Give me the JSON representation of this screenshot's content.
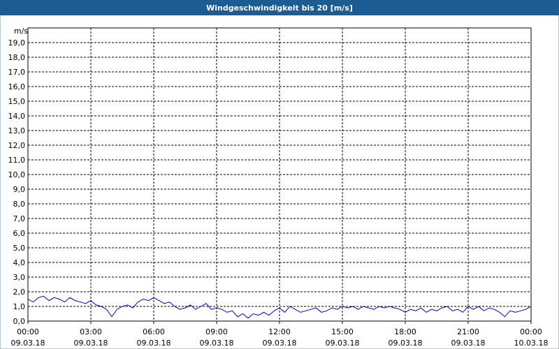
{
  "chart_data": {
    "type": "line",
    "title": "Windgeschwindigkeit bis 20 [m/s]",
    "y_label": "m/s",
    "x": [
      0,
      0.25,
      0.5,
      0.75,
      1,
      1.25,
      1.5,
      1.75,
      2,
      2.25,
      2.5,
      2.75,
      3,
      3.25,
      3.5,
      3.75,
      4,
      4.25,
      4.5,
      4.75,
      5,
      5.25,
      5.5,
      5.75,
      6,
      6.25,
      6.5,
      6.75,
      7,
      7.25,
      7.5,
      7.75,
      8,
      8.25,
      8.5,
      8.75,
      9,
      9.25,
      9.5,
      9.75,
      10,
      10.25,
      10.5,
      10.75,
      11,
      11.25,
      11.5,
      11.75,
      12,
      12.25,
      12.5,
      12.75,
      13,
      13.25,
      13.5,
      13.75,
      14,
      14.25,
      14.5,
      14.75,
      15,
      15.25,
      15.5,
      15.75,
      16,
      16.25,
      16.5,
      16.75,
      17,
      17.25,
      17.5,
      17.75,
      18,
      18.25,
      18.5,
      18.75,
      19,
      19.25,
      19.5,
      19.75,
      20,
      20.25,
      20.5,
      20.75,
      21,
      21.25,
      21.5,
      21.75,
      22,
      22.25,
      22.5,
      22.75,
      23,
      23.25,
      23.5,
      23.75,
      24
    ],
    "series": [
      {
        "color": "#0000cc",
        "values": [
          1.5,
          1.3,
          1.6,
          1.7,
          1.4,
          1.6,
          1.5,
          1.3,
          1.6,
          1.4,
          1.3,
          1.2,
          1.4,
          1.1,
          1.0,
          0.8,
          0.3,
          0.8,
          1.0,
          1.1,
          0.9,
          1.3,
          1.5,
          1.4,
          1.6,
          1.4,
          1.2,
          1.3,
          1.0,
          0.8,
          0.9,
          1.1,
          0.8,
          1.0,
          1.2,
          0.8,
          0.9,
          0.8,
          0.6,
          0.7,
          0.3,
          0.5,
          0.2,
          0.5,
          0.4,
          0.6,
          0.4,
          0.7,
          0.9,
          0.6,
          1.0,
          0.8,
          0.6,
          0.7,
          0.8,
          0.9,
          0.6,
          0.7,
          0.9,
          0.8,
          1.0,
          0.9,
          1.0,
          0.8,
          1.0,
          0.9,
          0.8,
          1.0,
          0.9,
          1.0,
          0.9,
          0.8,
          0.6,
          0.8,
          0.7,
          0.9,
          0.6,
          0.8,
          0.7,
          0.9,
          1.0,
          0.7,
          0.8,
          0.6,
          1.0,
          0.8,
          1.0,
          0.7,
          0.9,
          0.8,
          0.6,
          0.3,
          0.7,
          0.6,
          0.7,
          0.8,
          1.0
        ]
      }
    ],
    "xlim": [
      0,
      24
    ],
    "xticks": [
      {
        "value": 0,
        "label": "00:00\n09.03.18"
      },
      {
        "value": 3,
        "label": "03:00\n09.03.18"
      },
      {
        "value": 6,
        "label": "06:00\n09.03.18"
      },
      {
        "value": 9,
        "label": "09:00\n09.03.18"
      },
      {
        "value": 12,
        "label": "12:00\n09.03.18"
      },
      {
        "value": 15,
        "label": "15:00\n09.03.18"
      },
      {
        "value": 18,
        "label": "18:00\n09.03.18"
      },
      {
        "value": 21,
        "label": "21:00\n09.03.18"
      },
      {
        "value": 24,
        "label": "00:00\n10.03.18"
      }
    ],
    "ylim": [
      0,
      20
    ],
    "yticks": [
      {
        "value": 0,
        "label": "0,0"
      },
      {
        "value": 1,
        "label": "1,0"
      },
      {
        "value": 2,
        "label": "2,0"
      },
      {
        "value": 3,
        "label": "3,0"
      },
      {
        "value": 4,
        "label": "4,0"
      },
      {
        "value": 5,
        "label": "5,0"
      },
      {
        "value": 6,
        "label": "6,0"
      },
      {
        "value": 7,
        "label": "7,0"
      },
      {
        "value": 8,
        "label": "8,0"
      },
      {
        "value": 9,
        "label": "9,0"
      },
      {
        "value": 10,
        "label": "10,0"
      },
      {
        "value": 11,
        "label": "11,0"
      },
      {
        "value": 12,
        "label": "12,0"
      },
      {
        "value": 13,
        "label": "13,0"
      },
      {
        "value": 14,
        "label": "14,0"
      },
      {
        "value": 15,
        "label": "15,0"
      },
      {
        "value": 16,
        "label": "16,0"
      },
      {
        "value": 17,
        "label": "17,0"
      },
      {
        "value": 18,
        "label": "18,0"
      },
      {
        "value": 19,
        "label": "19,0"
      }
    ],
    "grid": true
  }
}
